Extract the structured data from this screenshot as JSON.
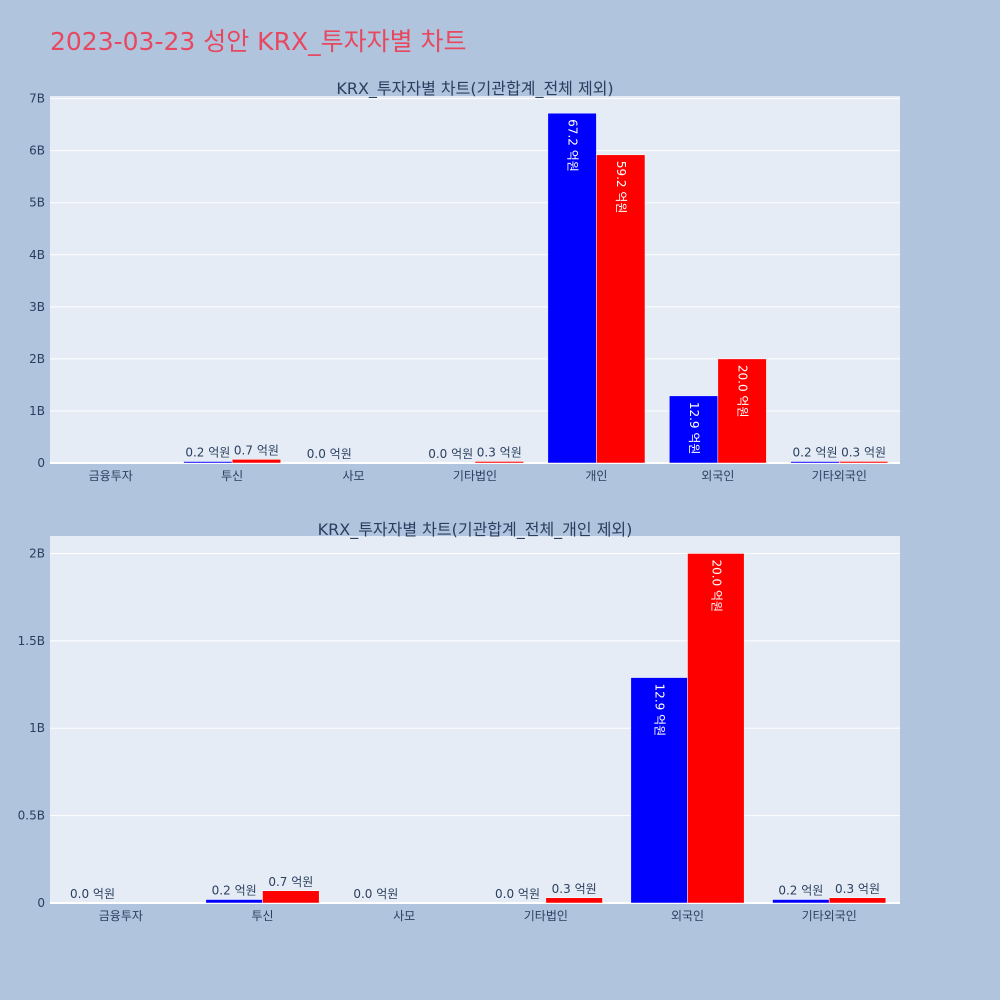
{
  "page": {
    "title": "2023-03-23 성안 KRX_투자자별 차트"
  },
  "colors": {
    "background": "#b0c4de",
    "plot_background": "#e5ecf6",
    "title": "#e8485f",
    "series_1": "#0000ff",
    "series_2": "#ff0000"
  },
  "chart_data": [
    {
      "type": "bar",
      "title": "KRX_투자자별 차트(기관합계_전체 제외)",
      "categories": [
        "금융투자",
        "투신",
        "사모",
        "기타법인",
        "개인",
        "외국인",
        "기타외국인"
      ],
      "series": [
        {
          "values": [
            0.0,
            0.02,
            0.0,
            0.0,
            6.72,
            1.29,
            0.02
          ],
          "labels": [
            "",
            "0.2 억원",
            "0.0 억원",
            "0.0 억원",
            "67.2 억원",
            "12.9 억원",
            "0.2 억원"
          ]
        },
        {
          "values": [
            0.0,
            0.07,
            0.0,
            0.03,
            5.92,
            2.0,
            0.03
          ],
          "labels": [
            "",
            "0.7 억원",
            "",
            "0.3 억원",
            "59.2 억원",
            "20.0 억원",
            "0.3 억원"
          ]
        }
      ],
      "unit": "B",
      "ylim": [
        0,
        7.05
      ],
      "yticks": [
        0,
        1,
        2,
        3,
        4,
        5,
        6,
        7
      ],
      "ytick_labels": [
        "0",
        "1B",
        "2B",
        "3B",
        "4B",
        "5B",
        "6B",
        "7B"
      ],
      "grid": true,
      "legend": "none"
    },
    {
      "type": "bar",
      "title": "KRX_투자자별 차트(기관합계_전체_개인 제외)",
      "categories": [
        "금융투자",
        "투신",
        "사모",
        "기타법인",
        "외국인",
        "기타외국인"
      ],
      "series": [
        {
          "values": [
            0.0,
            0.02,
            0.0,
            0.0,
            1.29,
            0.02
          ],
          "labels": [
            "0.0 억원",
            "0.2 억원",
            "0.0 억원",
            "0.0 억원",
            "12.9 억원",
            "0.2 억원"
          ]
        },
        {
          "values": [
            0.0,
            0.07,
            0.0,
            0.03,
            2.0,
            0.03
          ],
          "labels": [
            "",
            "0.7 억원",
            "",
            "0.3 억원",
            "20.0 억원",
            "0.3 억원"
          ]
        }
      ],
      "unit": "B",
      "ylim": [
        0,
        2.1
      ],
      "yticks": [
        0,
        0.5,
        1,
        1.5,
        2
      ],
      "ytick_labels": [
        "0",
        "0.5B",
        "1B",
        "1.5B",
        "2B"
      ],
      "grid": true,
      "legend": "none"
    }
  ]
}
